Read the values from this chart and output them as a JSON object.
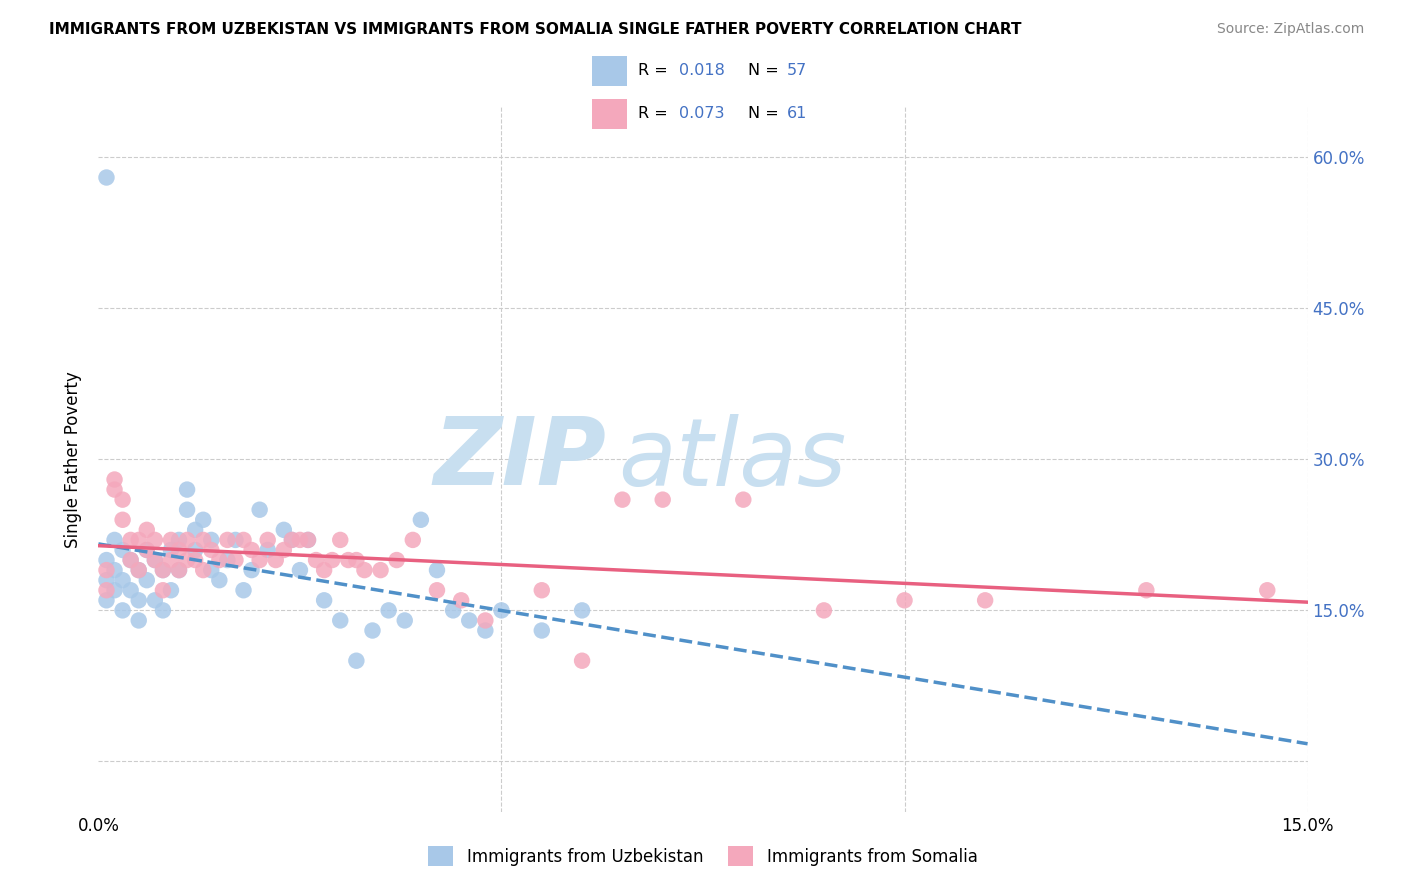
{
  "title": "IMMIGRANTS FROM UZBEKISTAN VS IMMIGRANTS FROM SOMALIA SINGLE FATHER POVERTY CORRELATION CHART",
  "source": "Source: ZipAtlas.com",
  "legend_label1": "Immigrants from Uzbekistan",
  "legend_label2": "Immigrants from Somalia",
  "R1": "0.018",
  "N1": "57",
  "R2": "0.073",
  "N2": "61",
  "color1": "#a8c8e8",
  "color2": "#f4a8bc",
  "trend_color1": "#5090c8",
  "trend_color2": "#e86080",
  "watermark_zip": "ZIP",
  "watermark_atlas": "atlas",
  "watermark_color_zip": "#c8dff0",
  "watermark_color_atlas": "#c8dff0",
  "xmin": 0.0,
  "xmax": 0.15,
  "ymin": -0.05,
  "ymax": 0.65,
  "uzbekistan_x": [
    0.001,
    0.001,
    0.001,
    0.001,
    0.002,
    0.002,
    0.002,
    0.003,
    0.003,
    0.003,
    0.004,
    0.004,
    0.005,
    0.005,
    0.005,
    0.006,
    0.006,
    0.007,
    0.007,
    0.008,
    0.008,
    0.009,
    0.009,
    0.01,
    0.01,
    0.011,
    0.011,
    0.012,
    0.012,
    0.013,
    0.014,
    0.014,
    0.015,
    0.016,
    0.017,
    0.018,
    0.019,
    0.02,
    0.021,
    0.023,
    0.024,
    0.025,
    0.026,
    0.028,
    0.03,
    0.032,
    0.034,
    0.036,
    0.038,
    0.04,
    0.042,
    0.044,
    0.046,
    0.048,
    0.05,
    0.055,
    0.06
  ],
  "uzbekistan_y": [
    0.58,
    0.2,
    0.18,
    0.16,
    0.22,
    0.19,
    0.17,
    0.21,
    0.18,
    0.15,
    0.2,
    0.17,
    0.19,
    0.16,
    0.14,
    0.21,
    0.18,
    0.2,
    0.16,
    0.19,
    0.15,
    0.21,
    0.17,
    0.22,
    0.19,
    0.27,
    0.25,
    0.23,
    0.21,
    0.24,
    0.22,
    0.19,
    0.18,
    0.2,
    0.22,
    0.17,
    0.19,
    0.25,
    0.21,
    0.23,
    0.22,
    0.19,
    0.22,
    0.16,
    0.14,
    0.1,
    0.13,
    0.15,
    0.14,
    0.24,
    0.19,
    0.15,
    0.14,
    0.13,
    0.15,
    0.13,
    0.15
  ],
  "somalia_x": [
    0.001,
    0.001,
    0.002,
    0.002,
    0.003,
    0.003,
    0.004,
    0.004,
    0.005,
    0.005,
    0.006,
    0.006,
    0.007,
    0.007,
    0.008,
    0.008,
    0.009,
    0.009,
    0.01,
    0.01,
    0.011,
    0.011,
    0.012,
    0.013,
    0.013,
    0.014,
    0.015,
    0.016,
    0.017,
    0.018,
    0.019,
    0.02,
    0.021,
    0.022,
    0.023,
    0.024,
    0.025,
    0.026,
    0.027,
    0.028,
    0.029,
    0.03,
    0.031,
    0.032,
    0.033,
    0.035,
    0.037,
    0.039,
    0.042,
    0.045,
    0.048,
    0.055,
    0.06,
    0.065,
    0.07,
    0.08,
    0.09,
    0.1,
    0.11,
    0.13,
    0.145
  ],
  "somalia_y": [
    0.19,
    0.17,
    0.28,
    0.27,
    0.26,
    0.24,
    0.22,
    0.2,
    0.22,
    0.19,
    0.23,
    0.21,
    0.22,
    0.2,
    0.19,
    0.17,
    0.22,
    0.2,
    0.21,
    0.19,
    0.22,
    0.2,
    0.2,
    0.22,
    0.19,
    0.21,
    0.2,
    0.22,
    0.2,
    0.22,
    0.21,
    0.2,
    0.22,
    0.2,
    0.21,
    0.22,
    0.22,
    0.22,
    0.2,
    0.19,
    0.2,
    0.22,
    0.2,
    0.2,
    0.19,
    0.19,
    0.2,
    0.22,
    0.17,
    0.16,
    0.14,
    0.17,
    0.1,
    0.26,
    0.26,
    0.26,
    0.15,
    0.16,
    0.16,
    0.17,
    0.17
  ]
}
